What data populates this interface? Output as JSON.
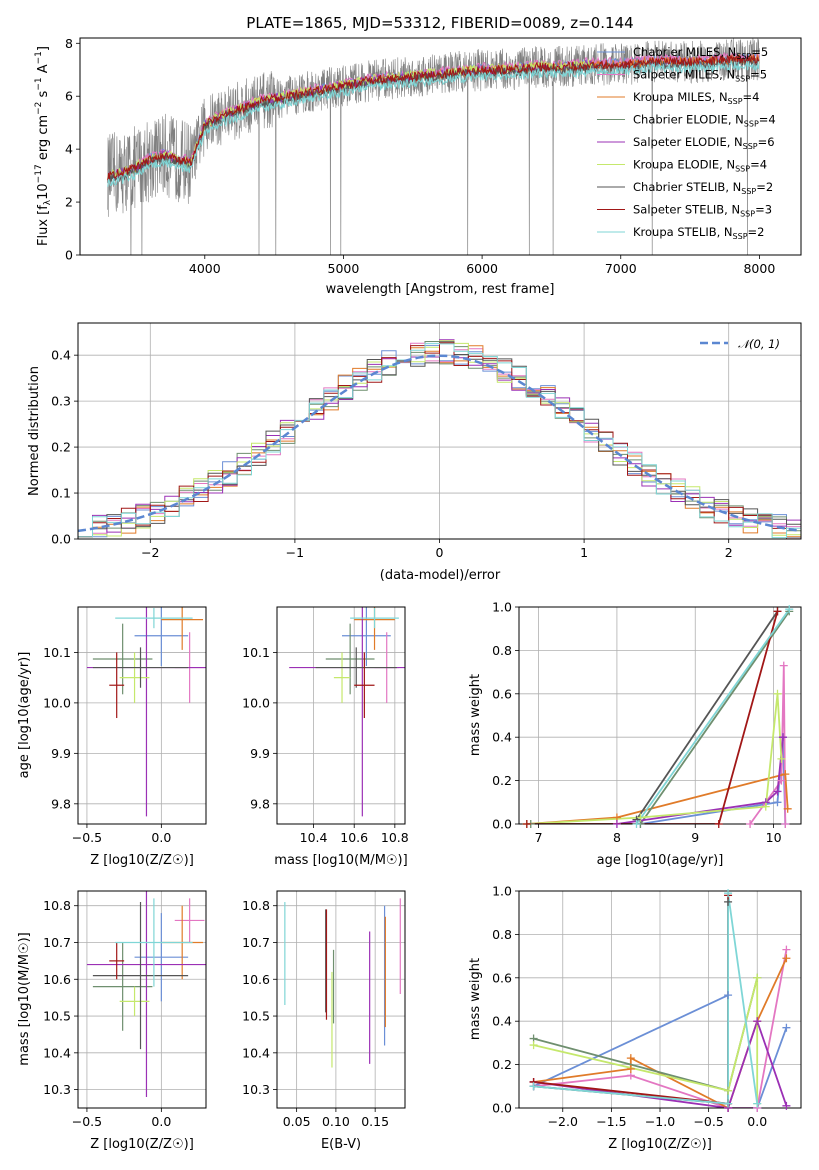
{
  "colors": {
    "Chabrier MILES": "#6b8fd6",
    "Salpeter MILES": "#e377c2",
    "Kroupa MILES": "#e07b29",
    "Chabrier ELODIE": "#6f8f6f",
    "Salpeter ELODIE": "#9b30b5",
    "Kroupa ELODIE": "#c5e86c",
    "Chabrier STELIB": "#555555",
    "Salpeter STELIB": "#a11717",
    "Kroupa STELIB": "#7fd6d6"
  },
  "chart_data": [
    {
      "id": "spectrum",
      "type": "line",
      "title": "PLATE=1865, MJD=53312, FIBERID=0089, z=0.144",
      "xlabel": "wavelength [Angstrom, rest frame]",
      "ylabel": "Flux [f_λ10^-17 erg cm^-2 s^-1 A^-1]",
      "xlim": [
        3100,
        8300
      ],
      "ylim": [
        0,
        8.2
      ],
      "xticks": [
        4000,
        5000,
        6000,
        7000,
        8000
      ],
      "yticks": [
        0,
        2,
        4,
        6,
        8
      ],
      "grid": false,
      "legend_position": "right",
      "data_series_color": "#808080",
      "data_series": {
        "x": [
          3300,
          3400,
          3500,
          3600,
          3700,
          3800,
          3900,
          4000,
          4100,
          4200,
          4300,
          4400,
          4500,
          4600,
          4700,
          4800,
          4900,
          5000,
          5200,
          5400,
          5600,
          5800,
          6000,
          6200,
          6400,
          6600,
          6800,
          7000,
          7200,
          7400,
          7600,
          7800,
          8000
        ],
        "y": [
          3.0,
          3.1,
          3.3,
          3.6,
          3.8,
          3.6,
          3.5,
          4.9,
          5.2,
          5.4,
          5.6,
          5.8,
          5.9,
          6.0,
          6.1,
          6.2,
          6.3,
          6.4,
          6.6,
          6.7,
          6.8,
          6.9,
          7.0,
          7.0,
          7.1,
          7.1,
          7.2,
          7.2,
          7.3,
          7.3,
          7.3,
          7.4,
          7.4
        ]
      },
      "models": [
        {
          "name": "Chabrier MILES",
          "nssp": "5",
          "offset": 0.05,
          "x_range": [
            3500,
            8000
          ]
        },
        {
          "name": "Salpeter MILES",
          "nssp": "5",
          "offset": 0.1,
          "x_range": [
            3500,
            8000
          ]
        },
        {
          "name": "Kroupa MILES",
          "nssp": "4",
          "offset": 0.0,
          "x_range": [
            3500,
            8000
          ]
        },
        {
          "name": "Chabrier ELODIE",
          "nssp": "4",
          "offset": -0.05,
          "x_range": [
            3300,
            6800
          ]
        },
        {
          "name": "Salpeter ELODIE",
          "nssp": "6",
          "offset": 0.0,
          "x_range": [
            3300,
            6800
          ]
        },
        {
          "name": "Kroupa ELODIE",
          "nssp": "4",
          "offset": 0.05,
          "x_range": [
            3300,
            6800
          ]
        },
        {
          "name": "Chabrier STELIB",
          "nssp": "2",
          "offset": -0.1,
          "x_range": [
            3300,
            8000
          ]
        },
        {
          "name": "Salpeter STELIB",
          "nssp": "3",
          "offset": 0.0,
          "x_range": [
            3300,
            8000
          ]
        },
        {
          "name": "Kroupa STELIB",
          "nssp": "2",
          "offset": -0.25,
          "x_range": [
            3300,
            8000
          ]
        }
      ]
    },
    {
      "id": "residuals",
      "type": "line",
      "xlabel": "(data-model)/error",
      "ylabel": "Normed distribution",
      "xlim": [
        -2.5,
        2.5
      ],
      "ylim": [
        0,
        0.47
      ],
      "xticks": [
        -2,
        -1,
        0,
        1,
        2
      ],
      "yticks": [
        0.0,
        0.1,
        0.2,
        0.3,
        0.4
      ],
      "grid": true,
      "legend_position": "top-right",
      "legend_label": "𝒩(0, 1)",
      "gaussian_color": "#5b87d1",
      "bin_width": 0.1
    },
    {
      "id": "age-vs-Z",
      "type": "scatter",
      "xlabel": "Z [log10(Z/Z☉)]",
      "ylabel": "age  [log10(age/yr)]",
      "xlim": [
        -0.56,
        0.3
      ],
      "ylim": [
        9.76,
        10.19
      ],
      "xticks": [
        -0.5,
        0.0
      ],
      "yticks": [
        9.8,
        9.9,
        10.0,
        10.1
      ],
      "grid": true,
      "points": [
        {
          "model": "Chabrier MILES",
          "x": 0.0,
          "xerr": 0.18,
          "y": 10.133,
          "yerr": 0.06
        },
        {
          "model": "Salpeter MILES",
          "x": 0.19,
          "xerr": 0.1,
          "y": 10.07,
          "yerr": 0.07
        },
        {
          "model": "Kroupa MILES",
          "x": 0.14,
          "xerr": 0.14,
          "y": 10.165,
          "yerr": 0.06
        },
        {
          "model": "Chabrier ELODIE",
          "x": -0.26,
          "xerr": 0.2,
          "y": 10.087,
          "yerr": 0.07
        },
        {
          "model": "Salpeter ELODIE",
          "x": -0.1,
          "xerr": 0.4,
          "y": 10.07,
          "yerr": 0.295
        },
        {
          "model": "Kroupa ELODIE",
          "x": -0.18,
          "xerr": 0.1,
          "y": 10.05,
          "yerr": 0.05
        },
        {
          "model": "Chabrier STELIB",
          "x": -0.14,
          "xerr": 0.32,
          "y": 10.07,
          "yerr": 0.04
        },
        {
          "model": "Salpeter STELIB",
          "x": -0.3,
          "xerr": 0.05,
          "y": 10.035,
          "yerr": 0.065
        },
        {
          "model": "Kroupa STELIB",
          "x": -0.05,
          "xerr": 0.26,
          "y": 10.168,
          "yerr": 0.02
        }
      ]
    },
    {
      "id": "age-vs-mass",
      "type": "scatter",
      "xlabel": "mass [log10(M/M☉)]",
      "ylabel": "",
      "xlim": [
        10.22,
        10.85
      ],
      "ylim": [
        9.76,
        10.19
      ],
      "xticks": [
        10.4,
        10.6,
        10.8
      ],
      "yticks": [
        9.8,
        9.9,
        10.0,
        10.1
      ],
      "grid": true,
      "points": [
        {
          "model": "Chabrier MILES",
          "x": 10.66,
          "xerr": 0.12,
          "y": 10.133,
          "yerr": 0.06
        },
        {
          "model": "Salpeter MILES",
          "x": 10.76,
          "xerr": 0.06,
          "y": 10.07,
          "yerr": 0.07
        },
        {
          "model": "Kroupa MILES",
          "x": 10.7,
          "xerr": 0.1,
          "y": 10.165,
          "yerr": 0.06
        },
        {
          "model": "Chabrier ELODIE",
          "x": 10.58,
          "xerr": 0.12,
          "y": 10.087,
          "yerr": 0.07
        },
        {
          "model": "Salpeter ELODIE",
          "x": 10.64,
          "xerr": 0.36,
          "y": 10.07,
          "yerr": 0.295
        },
        {
          "model": "Kroupa ELODIE",
          "x": 10.54,
          "xerr": 0.04,
          "y": 10.05,
          "yerr": 0.05
        },
        {
          "model": "Chabrier STELIB",
          "x": 10.61,
          "xerr": 0.2,
          "y": 10.07,
          "yerr": 0.04
        },
        {
          "model": "Salpeter STELIB",
          "x": 10.65,
          "xerr": 0.05,
          "y": 10.035,
          "yerr": 0.065
        },
        {
          "model": "Kroupa STELIB",
          "x": 10.7,
          "xerr": 0.12,
          "y": 10.168,
          "yerr": 0.02
        }
      ]
    },
    {
      "id": "mass-weight-vs-age",
      "type": "line",
      "xlabel": "age  [log10(age/yr)]",
      "ylabel": "mass weight",
      "xlim": [
        6.75,
        10.35
      ],
      "ylim": [
        0,
        1.0
      ],
      "xticks": [
        7,
        8,
        9,
        10
      ],
      "yticks": [
        0.0,
        0.2,
        0.4,
        0.6,
        0.8,
        1.0
      ],
      "grid": true,
      "series": [
        {
          "model": "Chabrier MILES",
          "x": [
            8.3,
            10.05,
            10.12,
            10.15
          ],
          "y": [
            0.0,
            0.1,
            0.4,
            0.0
          ]
        },
        {
          "model": "Salpeter MILES",
          "x": [
            9.7,
            10.1,
            10.13,
            10.15
          ],
          "y": [
            0.0,
            0.2,
            0.73,
            0.0
          ]
        },
        {
          "model": "Kroupa MILES",
          "x": [
            6.85,
            8.0,
            10.15,
            10.18
          ],
          "y": [
            0.0,
            0.03,
            0.23,
            0.07
          ]
        },
        {
          "model": "Chabrier ELODIE",
          "x": [
            6.9,
            8.3,
            10.2
          ],
          "y": [
            0.0,
            0.0,
            0.98
          ]
        },
        {
          "model": "Salpeter ELODIE",
          "x": [
            8.0,
            9.9,
            10.05,
            10.12
          ],
          "y": [
            0.0,
            0.1,
            0.15,
            0.4
          ]
        },
        {
          "model": "Kroupa ELODIE",
          "x": [
            6.85,
            8.3,
            9.9,
            10.05,
            10.1
          ],
          "y": [
            0.0,
            0.03,
            0.08,
            0.6,
            0.3
          ]
        },
        {
          "model": "Chabrier STELIB",
          "x": [
            8.25,
            10.05
          ],
          "y": [
            0.02,
            0.98
          ]
        },
        {
          "model": "Salpeter STELIB",
          "x": [
            6.85,
            9.3,
            10.05
          ],
          "y": [
            0.0,
            0.0,
            0.98
          ]
        },
        {
          "model": "Kroupa STELIB",
          "x": [
            8.25,
            10.2
          ],
          "y": [
            0.0,
            0.99
          ]
        }
      ]
    },
    {
      "id": "mass-vs-Z",
      "type": "scatter",
      "xlabel": "Z [log10(Z/Z☉)]",
      "ylabel": "mass [log10(M/M☉)]",
      "xlim": [
        -0.56,
        0.3
      ],
      "ylim": [
        10.25,
        10.84
      ],
      "xticks": [
        -0.5,
        0.0
      ],
      "yticks": [
        10.3,
        10.4,
        10.5,
        10.6,
        10.7,
        10.8
      ],
      "grid": true,
      "points": [
        {
          "model": "Chabrier MILES",
          "x": 0.0,
          "xerr": 0.18,
          "y": 10.66,
          "yerr": 0.12
        },
        {
          "model": "Salpeter MILES",
          "x": 0.19,
          "xerr": 0.1,
          "y": 10.76,
          "yerr": 0.06
        },
        {
          "model": "Kroupa MILES",
          "x": 0.14,
          "xerr": 0.14,
          "y": 10.7,
          "yerr": 0.1
        },
        {
          "model": "Chabrier ELODIE",
          "x": -0.26,
          "xerr": 0.2,
          "y": 10.58,
          "yerr": 0.12
        },
        {
          "model": "Salpeter ELODIE",
          "x": -0.1,
          "xerr": 0.4,
          "y": 10.64,
          "yerr": 0.36
        },
        {
          "model": "Kroupa ELODIE",
          "x": -0.18,
          "xerr": 0.1,
          "y": 10.54,
          "yerr": 0.04
        },
        {
          "model": "Chabrier STELIB",
          "x": -0.14,
          "xerr": 0.32,
          "y": 10.61,
          "yerr": 0.2
        },
        {
          "model": "Salpeter STELIB",
          "x": -0.3,
          "xerr": 0.05,
          "y": 10.65,
          "yerr": 0.05
        },
        {
          "model": "Kroupa STELIB",
          "x": -0.05,
          "xerr": 0.26,
          "y": 10.7,
          "yerr": 0.12
        }
      ]
    },
    {
      "id": "mass-vs-ebv",
      "type": "scatter",
      "xlabel": "E(B-V)",
      "ylabel": "",
      "xlim": [
        0.025,
        0.188
      ],
      "ylim": [
        10.25,
        10.84
      ],
      "xticks": [
        0.05,
        0.1,
        0.15
      ],
      "yticks": [
        10.3,
        10.4,
        10.5,
        10.6,
        10.7,
        10.8
      ],
      "grid": true,
      "points": [
        {
          "model": "Chabrier MILES",
          "x": 0.162,
          "y": 10.61,
          "yerr": 0.19
        },
        {
          "model": "Salpeter MILES",
          "x": 0.182,
          "y": 10.69,
          "yerr": 0.13
        },
        {
          "model": "Kroupa MILES",
          "x": 0.163,
          "y": 10.62,
          "yerr": 0.15
        },
        {
          "model": "Chabrier ELODIE",
          "x": 0.097,
          "y": 10.58,
          "yerr": 0.1
        },
        {
          "model": "Salpeter ELODIE",
          "x": 0.143,
          "y": 10.55,
          "yerr": 0.18
        },
        {
          "model": "Kroupa ELODIE",
          "x": 0.095,
          "y": 10.49,
          "yerr": 0.13
        },
        {
          "model": "Chabrier STELIB",
          "x": 0.087,
          "y": 10.65,
          "yerr": 0.14
        },
        {
          "model": "Salpeter STELIB",
          "x": 0.088,
          "y": 10.64,
          "yerr": 0.15
        },
        {
          "model": "Kroupa STELIB",
          "x": 0.035,
          "y": 10.67,
          "yerr": 0.14
        }
      ]
    },
    {
      "id": "mass-weight-vs-Z",
      "type": "line",
      "xlabel": "Z [log10(Z/Z☉)]",
      "ylabel": "mass weight",
      "xlim": [
        -2.45,
        0.45
      ],
      "ylim": [
        0,
        1.0
      ],
      "xticks": [
        -2.0,
        -1.5,
        -1.0,
        -0.5,
        0.0
      ],
      "yticks": [
        0.0,
        0.2,
        0.4,
        0.6,
        0.8,
        1.0
      ],
      "grid": true,
      "series": [
        {
          "model": "Chabrier MILES",
          "x": [
            -2.3,
            -0.3,
            -0.3,
            0.0,
            0.3
          ],
          "y": [
            0.1,
            0.52,
            0.0,
            0.0,
            0.37
          ]
        },
        {
          "model": "Salpeter MILES",
          "x": [
            -2.3,
            -1.3,
            -0.3,
            0.0,
            0.3
          ],
          "y": [
            0.1,
            0.15,
            0.0,
            0.0,
            0.73
          ]
        },
        {
          "model": "Kroupa MILES",
          "x": [
            -2.3,
            -1.3,
            -1.3,
            -0.3,
            0.0,
            0.3
          ],
          "y": [
            0.12,
            0.18,
            0.23,
            0.0,
            0.4,
            0.69
          ]
        },
        {
          "model": "Chabrier ELODIE",
          "x": [
            -2.3,
            -0.3,
            0.0
          ],
          "y": [
            0.32,
            0.08,
            0.6
          ]
        },
        {
          "model": "Salpeter ELODIE",
          "x": [
            -2.3,
            -0.3,
            0.0,
            0.3
          ],
          "y": [
            0.12,
            0.0,
            0.4,
            0.01
          ]
        },
        {
          "model": "Kroupa ELODIE",
          "x": [
            -2.3,
            -0.3,
            0.0,
            0.0
          ],
          "y": [
            0.29,
            0.08,
            0.6,
            0.02
          ]
        },
        {
          "model": "Chabrier STELIB",
          "x": [
            -2.3,
            -0.3,
            -0.3
          ],
          "y": [
            0.1,
            0.02,
            0.95
          ]
        },
        {
          "model": "Salpeter STELIB",
          "x": [
            -2.3,
            -0.3,
            -0.3
          ],
          "y": [
            0.12,
            0.02,
            0.98
          ]
        },
        {
          "model": "Kroupa STELIB",
          "x": [
            -2.3,
            -0.3,
            -0.3,
            0.0
          ],
          "y": [
            0.1,
            0.02,
            0.99,
            0.02
          ]
        }
      ]
    }
  ]
}
